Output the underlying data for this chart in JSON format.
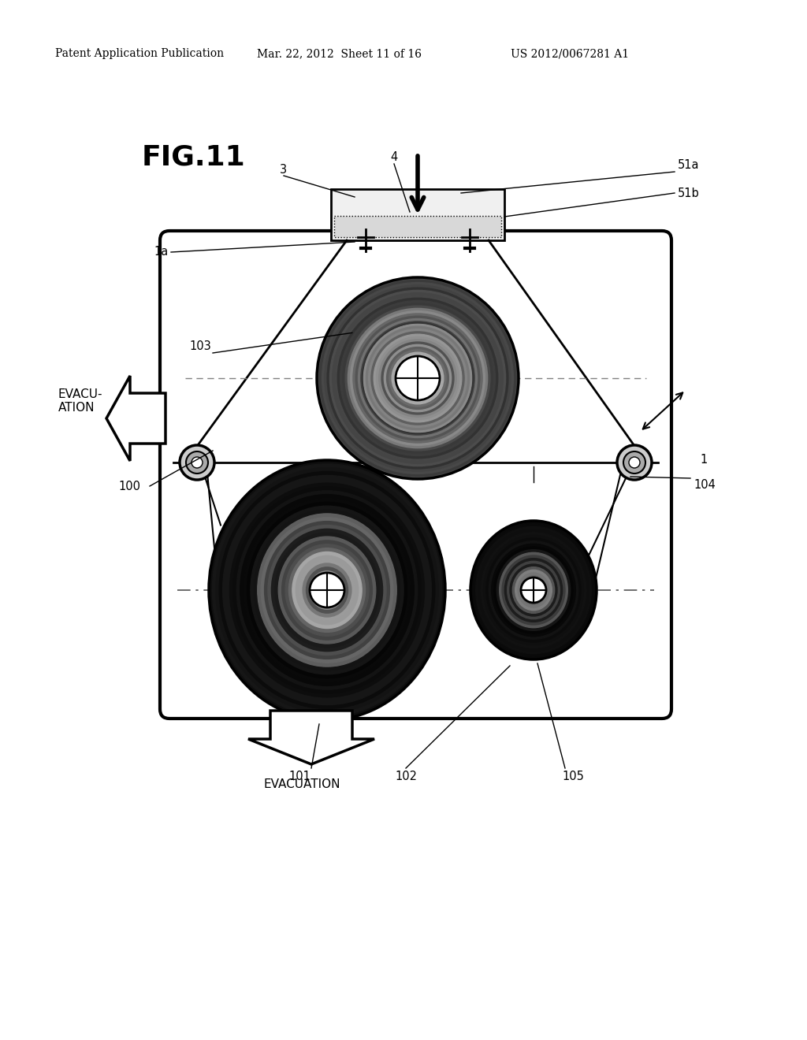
{
  "bg_color": "#ffffff",
  "header_left": "Patent Application Publication",
  "header_mid": "Mar. 22, 2012  Sheet 11 of 16",
  "header_right": "US 2012/0067281 A1",
  "fig_label": "FIG.11",
  "label_1": "1",
  "label_1a": "1a",
  "label_3": "3",
  "label_4": "4",
  "label_51a": "51a",
  "label_51b": "51b",
  "label_100": "100",
  "label_101": "101",
  "label_102": "102",
  "label_103": "103",
  "label_104": "104",
  "label_105": "105",
  "label_evacuation_left": "EVACU-\nATION",
  "label_evacuation_bottom": "EVACUATION"
}
